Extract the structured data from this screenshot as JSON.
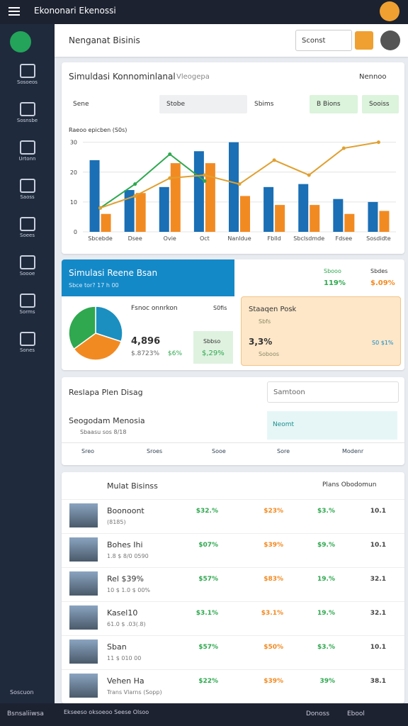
{
  "top_bar": {
    "title": "Ekononari Ekenossi"
  },
  "sidebar": {
    "items": [
      "Sosoeos",
      "Sosnsbe",
      "Urtonn",
      "Saoss",
      "Soees",
      "Soooe",
      "Sorms",
      "Sones"
    ],
    "footer": "Soscuon"
  },
  "page_header": {
    "title": "Nenganat Bisinis",
    "dropdown": "Sconst"
  },
  "chart_card": {
    "title": "Simuldasi Konnominlanal",
    "subtitle": "Vleogepa",
    "action": "Nennoo",
    "tabs": [
      "Sene",
      "Stobe",
      "Sbims",
      "B Bions",
      "Sooiss"
    ]
  },
  "chart_data": {
    "type": "bar",
    "y_label": "Raeoo epicben (S0s)",
    "categories": [
      "Sbcebde",
      "Dsee",
      "Ovie",
      "Oct",
      "Nanldue",
      "Fblld",
      "Sbclsdmde",
      "Fdsee",
      "Sosdidte"
    ],
    "series": [
      {
        "color": "#1a6fb5",
        "values": [
          24,
          14,
          15,
          27,
          30,
          15,
          16,
          11,
          10
        ]
      },
      {
        "color": "#f28a22",
        "values": [
          6,
          13,
          23,
          23,
          12,
          9,
          9,
          6,
          7
        ]
      },
      {
        "color": "#2fa84f",
        "line": true,
        "values": [
          8,
          16,
          26,
          17,
          null,
          null,
          null,
          null,
          null
        ]
      },
      {
        "color": "#e0a030",
        "line": true,
        "values": [
          8,
          12,
          18,
          19,
          16,
          24,
          19,
          28,
          30
        ]
      }
    ],
    "ylim": [
      0,
      33
    ],
    "yticks": [
      0,
      10,
      20,
      30
    ],
    "grid": true
  },
  "simulation": {
    "title": "Simulasi Reene Bsan",
    "subtitle": "Sbce tor? 17 h 00",
    "stat1_label": "Sbooo",
    "stat1_value": "119%",
    "stat2_label": "Sbdes",
    "stat2_value": "$.09%",
    "pie_title": "Fsnoc onnrkon",
    "pie_note": "S0fis",
    "pie": {
      "values": [
        30,
        35,
        35
      ],
      "colors": [
        "#1a8fc0",
        "#f28a22",
        "#2fa84f"
      ]
    },
    "main_value": "4,896",
    "main_sub": "$.8723%",
    "main_pct": "$6%",
    "box_label": "Sbbso",
    "box_value": "$,29%",
    "alert_title": "Staaqen Posk",
    "alert_sub": "Sbfs",
    "alert_value": "3,3%",
    "alert_note": "Soboos",
    "alert_right": "S0 $1%"
  },
  "plans": {
    "title": "Reslapa Plen Disag",
    "search": "Samtoon",
    "item_title": "Seogodam Menosia",
    "item_sub": "Sbaasu sos 8/18",
    "badge": "Neomt",
    "tabs": [
      "Sreo",
      "Sroes",
      "Sooe",
      "Sore",
      "Modenr"
    ]
  },
  "table": {
    "title": "Mulat Bisinss",
    "filter": "Plans Obodomun",
    "rows": [
      [
        "Boonoont",
        "(8185)",
        "$32.%",
        "$23%",
        "$3.%",
        "10.1"
      ],
      [
        "Bohes Ihi",
        "1.8 $ 8/0 0590",
        "$07%",
        "$39%",
        "$9.%",
        "10.1"
      ],
      [
        "Rel $39%",
        "10 $ 1.0 $ 00%",
        "$57%",
        "$83%",
        "19.%",
        "32.1"
      ],
      [
        "Kasel10",
        "61.0 $ .03(.8)",
        "$3.1%",
        "$3.1%",
        "19.%",
        "32.1"
      ],
      [
        "Sban",
        "11 $ 010 00",
        "$57%",
        "$50%",
        "$3.%",
        "10.1"
      ],
      [
        "Vehen Ha",
        "Trans Vlarns (Sopp)",
        "$22%",
        "$39%",
        "39%",
        "38.1"
      ]
    ]
  },
  "bottom_bar": {
    "left": "Bsnsaliiwsa",
    "middle": "Ekseeso oksoeoo Seese Olsoo",
    "right1": "Donoss",
    "right2": "Ebool"
  }
}
